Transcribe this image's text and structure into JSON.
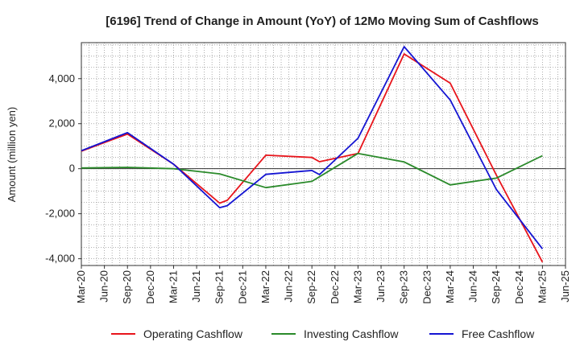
{
  "chart_data": {
    "type": "line",
    "title": "[6196]  Trend of Change in Amount (YoY) of 12Mo Moving Sum of Cashflows",
    "ylabel": "Amount (million yen)",
    "xlabel": "",
    "ylim": [
      -4300,
      5600
    ],
    "yticks": [
      -4000,
      -2000,
      0,
      2000,
      4000
    ],
    "ytick_labels": [
      "-4,000",
      "-2,000",
      "0",
      "2,000",
      "4,000"
    ],
    "xticks": [
      "Mar-20",
      "Jun-20",
      "Sep-20",
      "Dec-20",
      "Mar-21",
      "Jun-21",
      "Sep-21",
      "Dec-21",
      "Mar-22",
      "Jun-22",
      "Sep-22",
      "Dec-22",
      "Mar-23",
      "Jun-23",
      "Sep-23",
      "Dec-23",
      "Mar-24",
      "Jun-24",
      "Sep-24",
      "Dec-24",
      "Mar-25",
      "Jun-25"
    ],
    "grid": true,
    "legend_position": "bottom",
    "series": [
      {
        "name": "Operating Cashflow",
        "color": "#e8141b",
        "points": [
          [
            0,
            780
          ],
          [
            2,
            1540
          ],
          [
            4,
            200
          ],
          [
            6,
            -1530
          ],
          [
            6.33,
            -1400
          ],
          [
            8,
            600
          ],
          [
            10,
            500
          ],
          [
            10.33,
            310
          ],
          [
            12,
            680
          ],
          [
            14,
            5100
          ],
          [
            16,
            3800
          ],
          [
            18,
            -280
          ],
          [
            20,
            -4150
          ]
        ]
      },
      {
        "name": "Investing Cashflow",
        "color": "#2a8a2a",
        "points": [
          [
            0,
            30
          ],
          [
            2,
            60
          ],
          [
            4,
            0
          ],
          [
            6,
            -230
          ],
          [
            8,
            -840
          ],
          [
            10,
            -560
          ],
          [
            12,
            680
          ],
          [
            14,
            300
          ],
          [
            16,
            -720
          ],
          [
            18,
            -420
          ],
          [
            20,
            580
          ]
        ]
      },
      {
        "name": "Free Cashflow",
        "color": "#1414d2",
        "points": [
          [
            0,
            800
          ],
          [
            2,
            1600
          ],
          [
            4,
            200
          ],
          [
            6,
            -1730
          ],
          [
            6.33,
            -1640
          ],
          [
            8,
            -250
          ],
          [
            10,
            -80
          ],
          [
            10.33,
            -260
          ],
          [
            12,
            1350
          ],
          [
            14,
            5420
          ],
          [
            16,
            3050
          ],
          [
            18,
            -920
          ],
          [
            20,
            -3560
          ]
        ]
      }
    ]
  }
}
